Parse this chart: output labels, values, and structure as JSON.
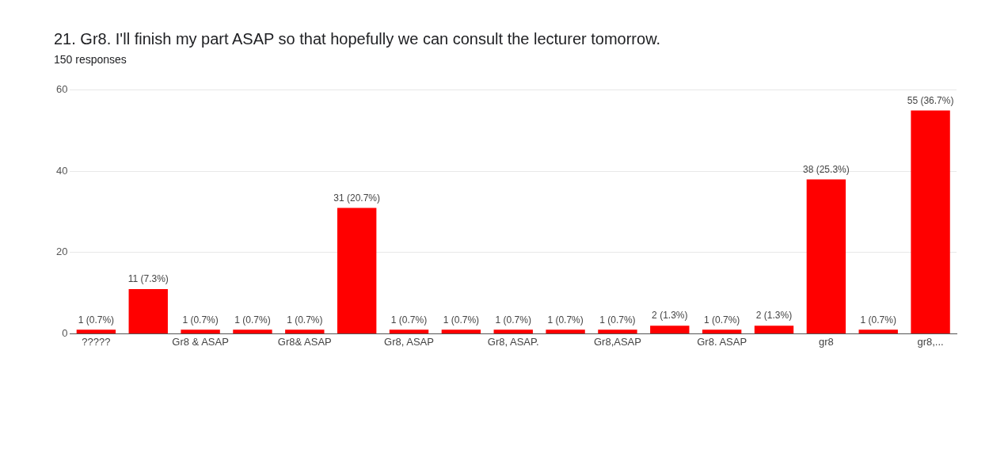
{
  "chart_data": {
    "type": "bar",
    "title": "21. Gr8. I'll finish my part ASAP so that hopefully we can consult the lecturer tomorrow.",
    "subtitle": "150 responses",
    "categories": [
      "?????",
      null,
      "Gr8 & ASAP",
      null,
      "Gr8& ASAP",
      null,
      "Gr8, ASAP",
      null,
      "Gr8, ASAP.",
      null,
      "Gr8,ASAP",
      null,
      "Gr8. ASAP",
      null,
      "gr8",
      null,
      "gr8,..."
    ],
    "values": [
      1,
      11,
      1,
      1,
      1,
      31,
      1,
      1,
      1,
      1,
      1,
      2,
      1,
      2,
      38,
      1,
      55
    ],
    "value_labels": [
      "1 (0.7%)",
      "11 (7.3%)",
      "1 (0.7%)",
      "1 (0.7%)",
      "1 (0.7%)",
      "31 (20.7%)",
      "1 (0.7%)",
      "1 (0.7%)",
      "1 (0.7%)",
      "1 (0.7%)",
      "1 (0.7%)",
      "2 (1.3%)",
      "1 (0.7%)",
      "2 (1.3%)",
      "38 (25.3%)",
      "1 (0.7%)",
      "55 (36.7%)"
    ],
    "color": "#ff0000",
    "ylim": [
      0,
      60
    ],
    "yticks": [
      0,
      20,
      40,
      60
    ],
    "grid": "y",
    "legend": false
  }
}
